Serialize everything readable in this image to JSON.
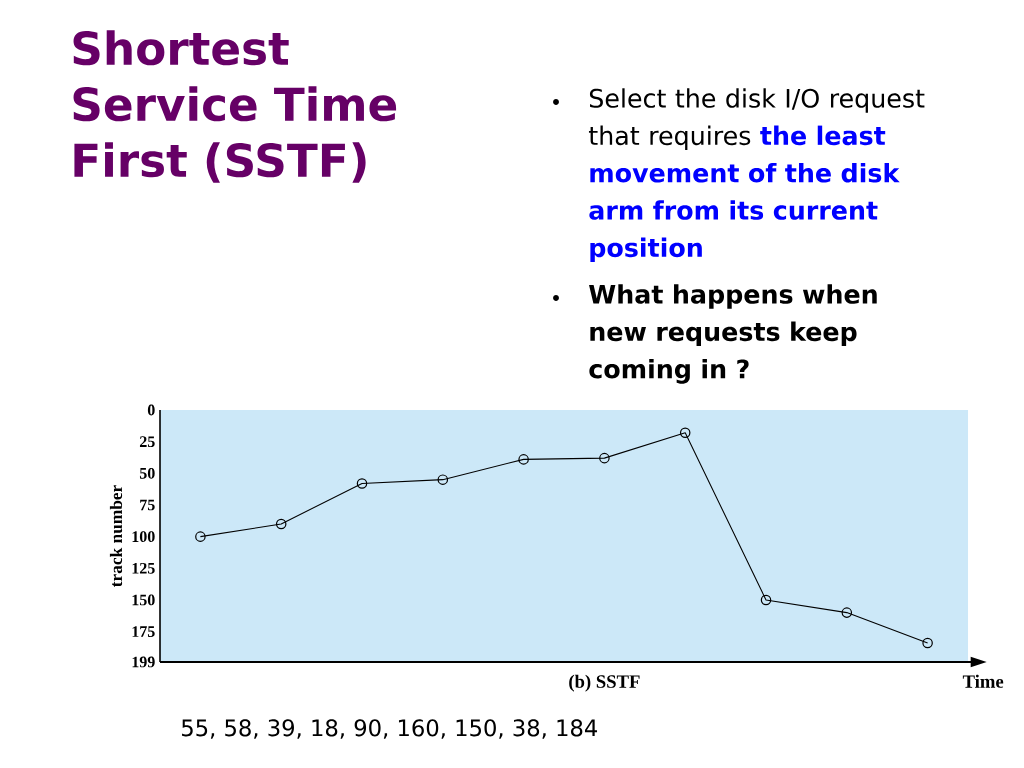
{
  "chart_data": {
    "type": "line",
    "title": "Shortest Service Time First (SSTF)",
    "subtitle": "(b) SSTF",
    "xlabel": "Time",
    "ylabel": "track number",
    "annotations": [
      "Select the disk I/O request that requires",
      "the least movement of the disk arm from its current position",
      "What happens when new requests keep coming in ?",
      "55, 58, 39, 18, 90, 160, 150, 38, 184"
    ],
    "categories": [
      null,
      null,
      null,
      null,
      null,
      null,
      null,
      null,
      null,
      null
    ],
    "values": [
      100,
      90,
      58,
      55,
      39,
      38,
      18,
      150,
      160,
      184
    ],
    "color": "#000000",
    "marker": "circle",
    "line_style": "solid",
    "ylim": [
      199,
      0
    ],
    "yticks": [
      0,
      25,
      50,
      75,
      100,
      125,
      150,
      175,
      199
    ],
    "tick_labels": "y"
  }
}
